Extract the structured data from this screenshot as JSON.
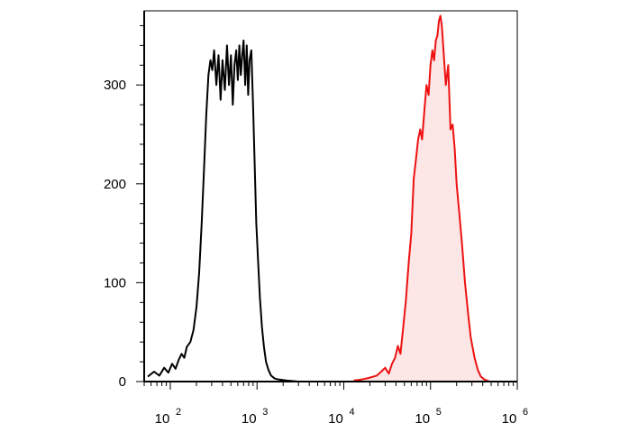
{
  "chart_data": {
    "type": "area",
    "title": "",
    "xlabel": "",
    "ylabel": "",
    "x_scale": "log",
    "xlim": [
      50,
      1000000
    ],
    "ylim": [
      0,
      375
    ],
    "grid": false,
    "legend": "none",
    "x_ticks": [
      {
        "value": 100,
        "base": "10",
        "exp": "2"
      },
      {
        "value": 1000,
        "base": "10",
        "exp": "3"
      },
      {
        "value": 10000,
        "base": "10",
        "exp": "4"
      },
      {
        "value": 100000,
        "base": "10",
        "exp": "5"
      },
      {
        "value": 1000000,
        "base": "10",
        "exp": "6"
      }
    ],
    "y_ticks": [
      {
        "value": 0,
        "label": "0"
      },
      {
        "value": 100,
        "label": "100"
      },
      {
        "value": 200,
        "label": "200"
      },
      {
        "value": 300,
        "label": "300"
      }
    ],
    "series": [
      {
        "color": "#000000",
        "fill": "none",
        "points": [
          [
            55,
            5
          ],
          [
            65,
            10
          ],
          [
            75,
            6
          ],
          [
            85,
            14
          ],
          [
            95,
            9
          ],
          [
            105,
            18
          ],
          [
            115,
            13
          ],
          [
            125,
            22
          ],
          [
            135,
            28
          ],
          [
            145,
            24
          ],
          [
            155,
            35
          ],
          [
            170,
            40
          ],
          [
            185,
            52
          ],
          [
            200,
            75
          ],
          [
            215,
            110
          ],
          [
            230,
            160
          ],
          [
            245,
            215
          ],
          [
            260,
            270
          ],
          [
            275,
            310
          ],
          [
            290,
            325
          ],
          [
            305,
            315
          ],
          [
            320,
            335
          ],
          [
            340,
            300
          ],
          [
            360,
            330
          ],
          [
            380,
            285
          ],
          [
            400,
            325
          ],
          [
            425,
            295
          ],
          [
            450,
            340
          ],
          [
            475,
            300
          ],
          [
            500,
            330
          ],
          [
            525,
            280
          ],
          [
            550,
            320
          ],
          [
            575,
            335
          ],
          [
            600,
            305
          ],
          [
            625,
            340
          ],
          [
            650,
            310
          ],
          [
            675,
            330
          ],
          [
            700,
            345
          ],
          [
            730,
            300
          ],
          [
            760,
            340
          ],
          [
            790,
            290
          ],
          [
            820,
            325
          ],
          [
            860,
            335
          ],
          [
            900,
            280
          ],
          [
            940,
            220
          ],
          [
            980,
            160
          ],
          [
            1030,
            120
          ],
          [
            1080,
            85
          ],
          [
            1140,
            55
          ],
          [
            1200,
            35
          ],
          [
            1270,
            20
          ],
          [
            1350,
            12
          ],
          [
            1450,
            6
          ],
          [
            1600,
            3
          ],
          [
            1800,
            2
          ],
          [
            2200,
            1
          ],
          [
            3000,
            0
          ]
        ]
      },
      {
        "color": "#ee1111",
        "fill": "#fce6e6",
        "points": [
          [
            13000,
            1
          ],
          [
            16000,
            2
          ],
          [
            20000,
            4
          ],
          [
            24000,
            6
          ],
          [
            27000,
            10
          ],
          [
            30000,
            14
          ],
          [
            33000,
            8
          ],
          [
            36000,
            18
          ],
          [
            39000,
            24
          ],
          [
            42000,
            36
          ],
          [
            45000,
            28
          ],
          [
            48000,
            52
          ],
          [
            52000,
            82
          ],
          [
            56000,
            120
          ],
          [
            60000,
            150
          ],
          [
            64000,
            205
          ],
          [
            68000,
            225
          ],
          [
            72000,
            245
          ],
          [
            76000,
            255
          ],
          [
            80000,
            245
          ],
          [
            85000,
            275
          ],
          [
            90000,
            300
          ],
          [
            95000,
            290
          ],
          [
            100000,
            320
          ],
          [
            105000,
            335
          ],
          [
            110000,
            325
          ],
          [
            115000,
            345
          ],
          [
            120000,
            350
          ],
          [
            125000,
            365
          ],
          [
            130000,
            370
          ],
          [
            135000,
            360
          ],
          [
            140000,
            340
          ],
          [
            150000,
            300
          ],
          [
            160000,
            320
          ],
          [
            170000,
            255
          ],
          [
            180000,
            260
          ],
          [
            190000,
            235
          ],
          [
            200000,
            200
          ],
          [
            215000,
            170
          ],
          [
            230000,
            140
          ],
          [
            250000,
            100
          ],
          [
            270000,
            70
          ],
          [
            290000,
            45
          ],
          [
            320000,
            25
          ],
          [
            350000,
            12
          ],
          [
            380000,
            5
          ],
          [
            420000,
            2
          ],
          [
            480000,
            0
          ]
        ]
      }
    ]
  }
}
